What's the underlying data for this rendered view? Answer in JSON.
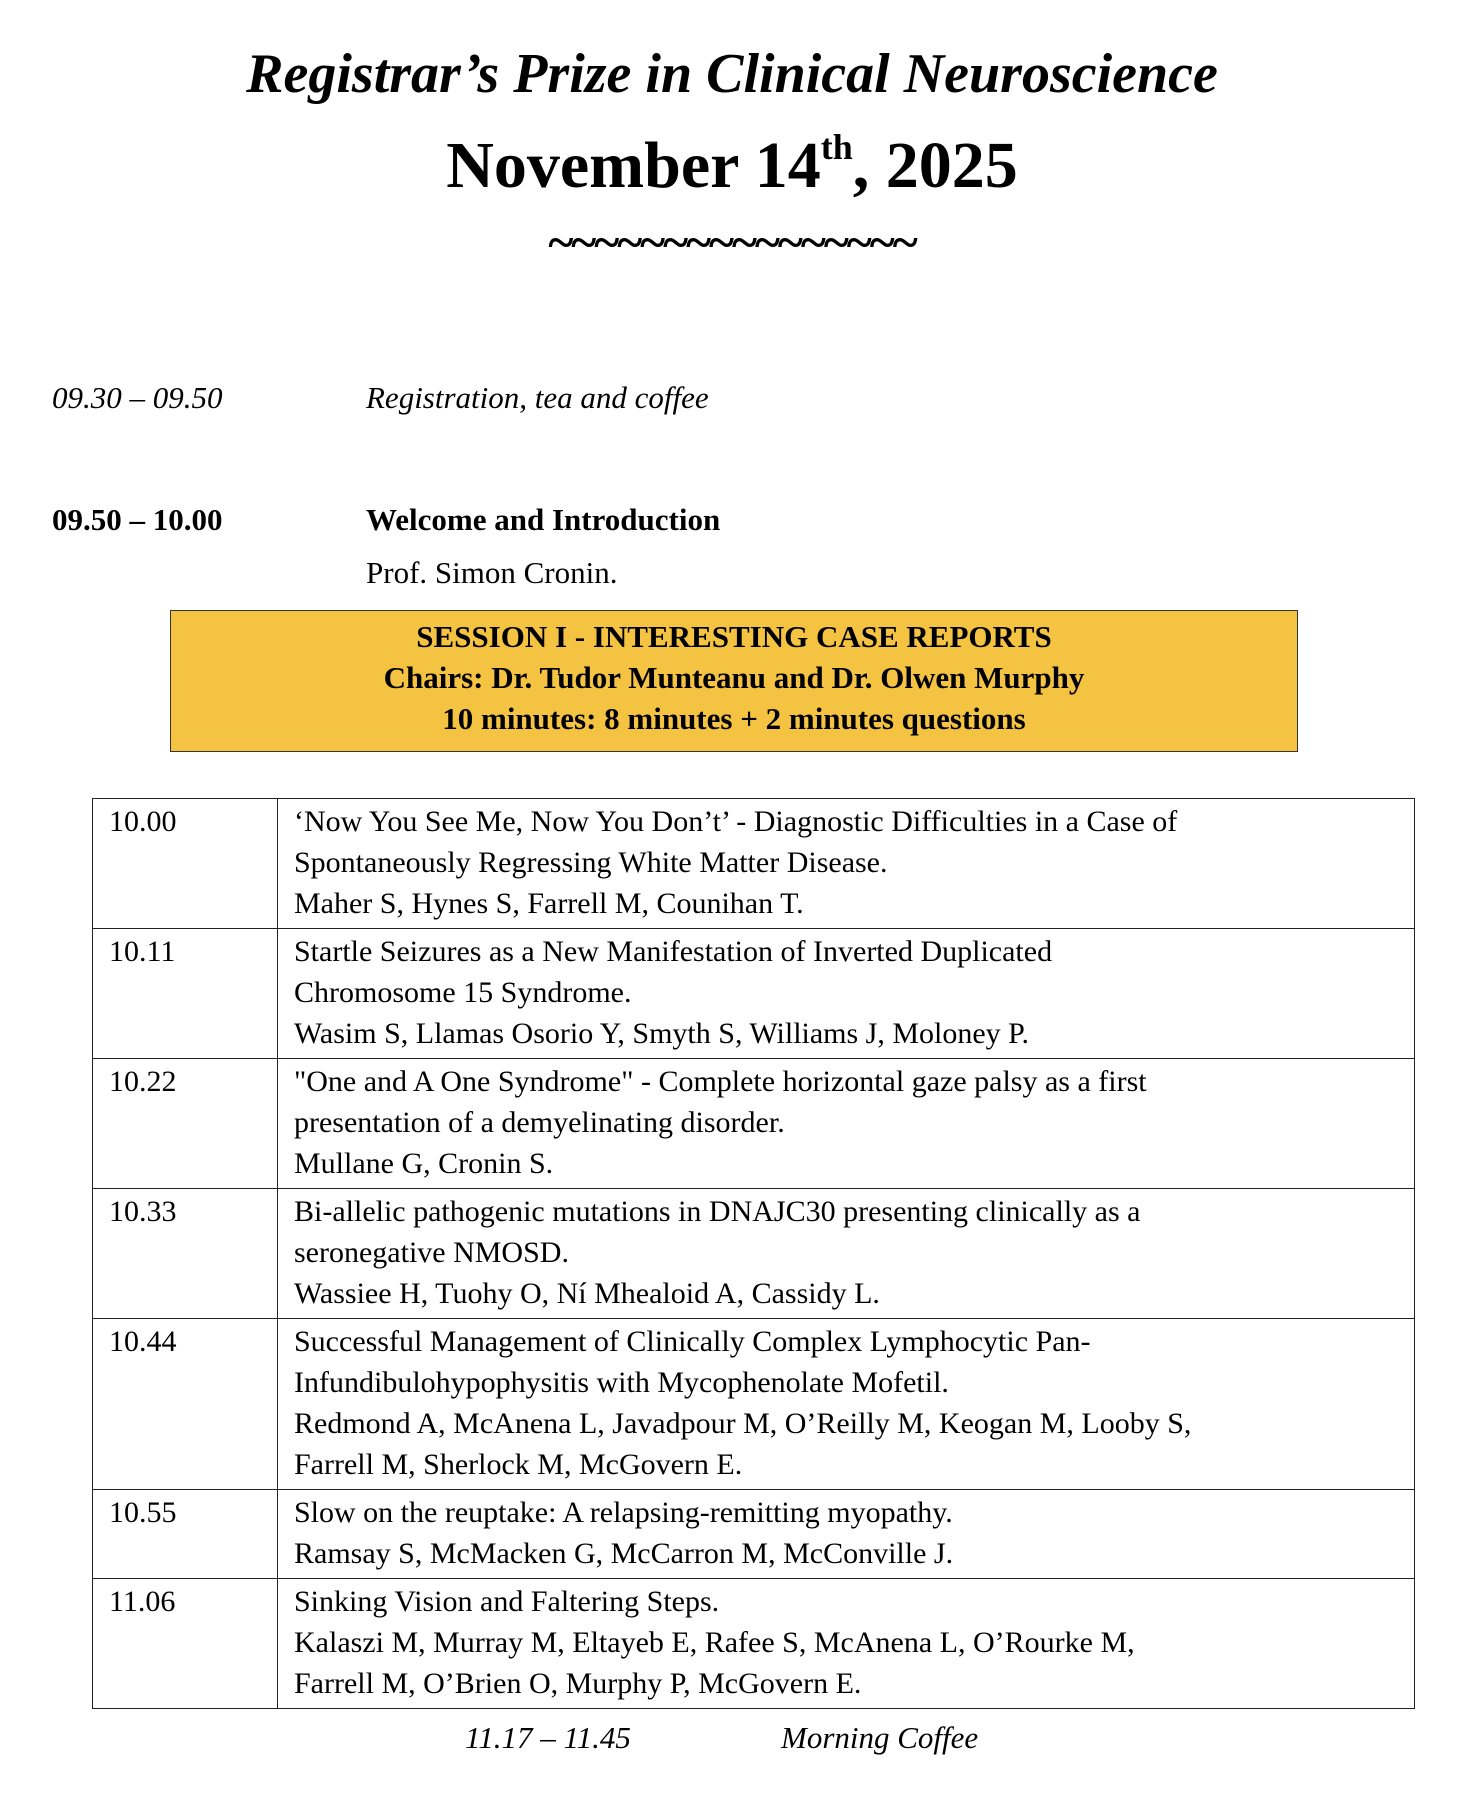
{
  "header": {
    "title": "Registrar’s Prize in Clinical Neuroscience",
    "date_main": "November 14",
    "date_sup": "th",
    "date_year": ", 2025",
    "divider": "~~~~~~~~~~~~~~~~"
  },
  "schedule": [
    {
      "time": "09.30 – 09.50",
      "event": "Registration, tea and coffee"
    },
    {
      "time": "09.50 – 10.00",
      "event": "Welcome and Introduction",
      "speaker": "Prof. Simon Cronin."
    }
  ],
  "session": {
    "title": "SESSION I - INTERESTING CASE REPORTS",
    "chairs": "Chairs: Dr. Tudor Munteanu and Dr. Olwen Murphy",
    "format": "10 minutes: 8 minutes + 2 minutes questions",
    "background_color": "#f4c342"
  },
  "talks": [
    {
      "time": "10.00",
      "lines": [
        "‘Now You See Me, Now You Don’t’ - Diagnostic Difficulties in a Case of",
        "Spontaneously Regressing White Matter Disease.",
        "Maher S, Hynes S, Farrell M, Counihan T."
      ]
    },
    {
      "time": "10.11",
      "lines": [
        "Startle Seizures as a New Manifestation of Inverted Duplicated",
        "Chromosome 15 Syndrome.",
        "Wasim S, Llamas Osorio Y, Smyth S, Williams J, Moloney P."
      ]
    },
    {
      "time": "10.22",
      "lines": [
        "\"One and A One Syndrome\" - Complete horizontal gaze palsy as a first",
        "presentation of a demyelinating disorder.",
        "Mullane G, Cronin S."
      ]
    },
    {
      "time": "10.33",
      "lines": [
        "Bi-allelic pathogenic mutations in DNAJC30 presenting clinically as a",
        "seronegative NMOSD.",
        "Wassiee H, Tuohy O, Ní Mhealoid A, Cassidy L."
      ]
    },
    {
      "time": "10.44",
      "lines": [
        "Successful Management of Clinically Complex Lymphocytic Pan-",
        "Infundibulohypophysitis with Mycophenolate Mofetil.",
        "Redmond A, McAnena L, Javadpour M, O’Reilly M, Keogan M, Looby S,",
        "Farrell M, Sherlock M, McGovern E."
      ]
    },
    {
      "time": "10.55",
      "lines": [
        "Slow on the reuptake: A relapsing-remitting myopathy.",
        "Ramsay S, McMacken G, McCarron M, McConville J."
      ]
    },
    {
      "time": "11.06",
      "lines": [
        "Sinking Vision and Faltering Steps.",
        "Kalaszi M, Murray M, Eltayeb E, Rafee S, McAnena L, O’Rourke M,",
        "Farrell M, O’Brien O, Murphy P, McGovern E."
      ]
    }
  ],
  "break": {
    "time": "11.17 – 11.45",
    "event": "Morning Coffee"
  }
}
